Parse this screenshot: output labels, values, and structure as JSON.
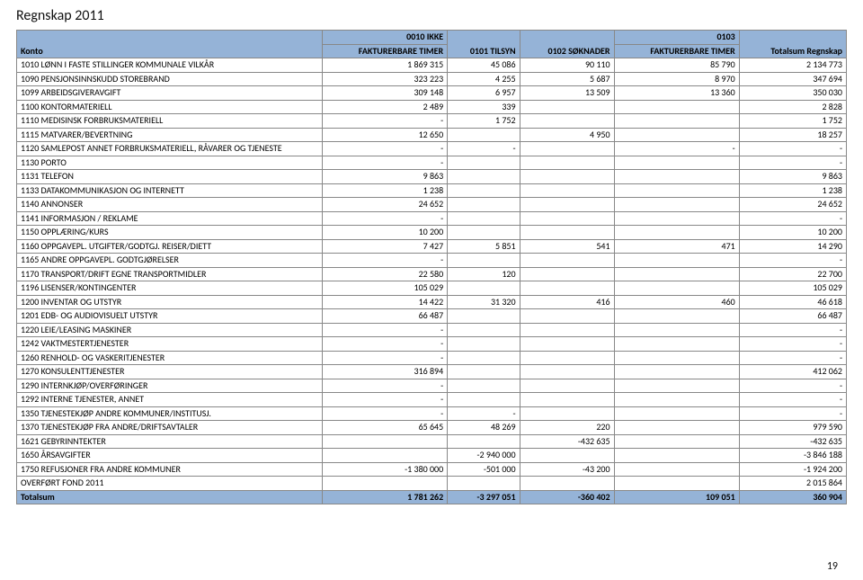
{
  "page": {
    "title": "Regnskap 2011",
    "page_number": "19"
  },
  "table": {
    "header": {
      "konto": "Konto",
      "col1_top": "0010 IKKE",
      "col1": "FAKTURERBARE TIMER",
      "col2": "0101 TILSYN",
      "col3": "0102 SØKNADER",
      "col4_top": "0103",
      "col4": "FAKTURERBARE TIMER",
      "col5": "Totalsum Regnskap"
    },
    "rows": [
      {
        "k": "1010 LØNN I FASTE STILLINGER KOMMUNALE VILKÅR",
        "c1": "1 869 315",
        "c2": "45 086",
        "c3": "90 110",
        "c4": "85 790",
        "c5": "2 134 773"
      },
      {
        "k": "1090 PENSJONSINNSKUDD STOREBRAND",
        "c1": "323 223",
        "c2": "4 255",
        "c3": "5 687",
        "c4": "8 970",
        "c5": "347 694"
      },
      {
        "k": "1099 ARBEIDSGIVERAVGIFT",
        "c1": "309 148",
        "c2": "6 957",
        "c3": "13 509",
        "c4": "13 360",
        "c5": "350 030"
      },
      {
        "k": "1100 KONTORMATERIELL",
        "c1": "2 489",
        "c2": "339",
        "c3": "",
        "c4": "",
        "c5": "2 828"
      },
      {
        "k": "1110 MEDISINSK FORBRUKSMATERIELL",
        "c1": "-",
        "c2": "1 752",
        "c3": "",
        "c4": "",
        "c5": "1 752"
      },
      {
        "k": "1115 MATVARER/BEVERTNING",
        "c1": "12 650",
        "c2": "",
        "c3": "4 950",
        "c4": "",
        "c5": "18 257"
      },
      {
        "k": "1120 SAMLEPOST ANNET FORBRUKSMATERIELL, RÅVARER OG TJENESTE",
        "c1": "-",
        "c2": "-",
        "c3": "",
        "c4": "-",
        "c5": "-"
      },
      {
        "k": "1130 PORTO",
        "c1": "-",
        "c2": "",
        "c3": "",
        "c4": "",
        "c5": "-"
      },
      {
        "k": "1131 TELEFON",
        "c1": "9 863",
        "c2": "",
        "c3": "",
        "c4": "",
        "c5": "9 863"
      },
      {
        "k": "1133 DATAKOMMUNIKASJON OG INTERNETT",
        "c1": "1 238",
        "c2": "",
        "c3": "",
        "c4": "",
        "c5": "1 238"
      },
      {
        "k": "1140 ANNONSER",
        "c1": "24 652",
        "c2": "",
        "c3": "",
        "c4": "",
        "c5": "24 652"
      },
      {
        "k": "1141 INFORMASJON / REKLAME",
        "c1": "-",
        "c2": "",
        "c3": "",
        "c4": "",
        "c5": "-"
      },
      {
        "k": "1150 OPPLÆRING/KURS",
        "c1": "10 200",
        "c2": "",
        "c3": "",
        "c4": "",
        "c5": "10 200"
      },
      {
        "k": "1160 OPPGAVEPL. UTGIFTER/GODTGJ. REISER/DIETT",
        "c1": "7 427",
        "c2": "5 851",
        "c3": "541",
        "c4": "471",
        "c5": "14 290"
      },
      {
        "k": "1165 ANDRE OPPGAVEPL. GODTGJØRELSER",
        "c1": "-",
        "c2": "",
        "c3": "",
        "c4": "",
        "c5": "-"
      },
      {
        "k": "1170 TRANSPORT/DRIFT EGNE TRANSPORTMIDLER",
        "c1": "22 580",
        "c2": "120",
        "c3": "",
        "c4": "",
        "c5": "22 700"
      },
      {
        "k": "1196 LISENSER/KONTINGENTER",
        "c1": "105 029",
        "c2": "",
        "c3": "",
        "c4": "",
        "c5": "105 029"
      },
      {
        "k": "1200 INVENTAR OG UTSTYR",
        "c1": "14 422",
        "c2": "31 320",
        "c3": "416",
        "c4": "460",
        "c5": "46 618"
      },
      {
        "k": "1201 EDB- OG AUDIOVISUELT UTSTYR",
        "c1": "66 487",
        "c2": "",
        "c3": "",
        "c4": "",
        "c5": "66 487"
      },
      {
        "k": "1220 LEIE/LEASING MASKINER",
        "c1": "-",
        "c2": "",
        "c3": "",
        "c4": "",
        "c5": "-"
      },
      {
        "k": "1242 VAKTMESTERTJENESTER",
        "c1": "-",
        "c2": "",
        "c3": "",
        "c4": "",
        "c5": "-"
      },
      {
        "k": "1260 RENHOLD- OG VASKERITJENESTER",
        "c1": "-",
        "c2": "",
        "c3": "",
        "c4": "",
        "c5": "-"
      },
      {
        "k": "1270 KONSULENTTJENESTER",
        "c1": "316 894",
        "c2": "",
        "c3": "",
        "c4": "",
        "c5": "412 062"
      },
      {
        "k": "1290 INTERNKJØP/OVERFØRINGER",
        "c1": "-",
        "c2": "",
        "c3": "",
        "c4": "",
        "c5": "-"
      },
      {
        "k": "1292 INTERNE TJENESTER, ANNET",
        "c1": "-",
        "c2": "",
        "c3": "",
        "c4": "",
        "c5": "-"
      },
      {
        "k": "1350 TJENESTEKJØP ANDRE KOMMUNER/INSTITUSJ.",
        "c1": "-",
        "c2": "-",
        "c3": "",
        "c4": "",
        "c5": "-"
      },
      {
        "k": "1370 TJENESTEKJØP FRA ANDRE/DRIFTSAVTALER",
        "c1": "65 645",
        "c2": "48 269",
        "c3": "220",
        "c4": "",
        "c5": "979 590"
      },
      {
        "k": "1621 GEBYRINNTEKTER",
        "c1": "",
        "c2": "",
        "c3": "-432 635",
        "c4": "",
        "c5": "-432 635"
      },
      {
        "k": "1650 ÅRSAVGIFTER",
        "c1": "",
        "c2": "-2 940 000",
        "c3": "",
        "c4": "",
        "c5": "-3 846 188"
      },
      {
        "k": "1750 REFUSJONER FRA ANDRE KOMMUNER",
        "c1": "-1 380 000",
        "c2": "-501 000",
        "c3": "-43 200",
        "c4": "",
        "c5": "-1 924 200"
      },
      {
        "k": "OVERFØRT FOND 2011",
        "c1": "",
        "c2": "",
        "c3": "",
        "c4": "",
        "c5": "2 015 864"
      }
    ],
    "footer": {
      "label": "Totalsum",
      "c1": "1 781 262",
      "c2": "-3 297 051",
      "c3": "-360 402",
      "c4": "109 051",
      "c5": "360 904"
    }
  }
}
